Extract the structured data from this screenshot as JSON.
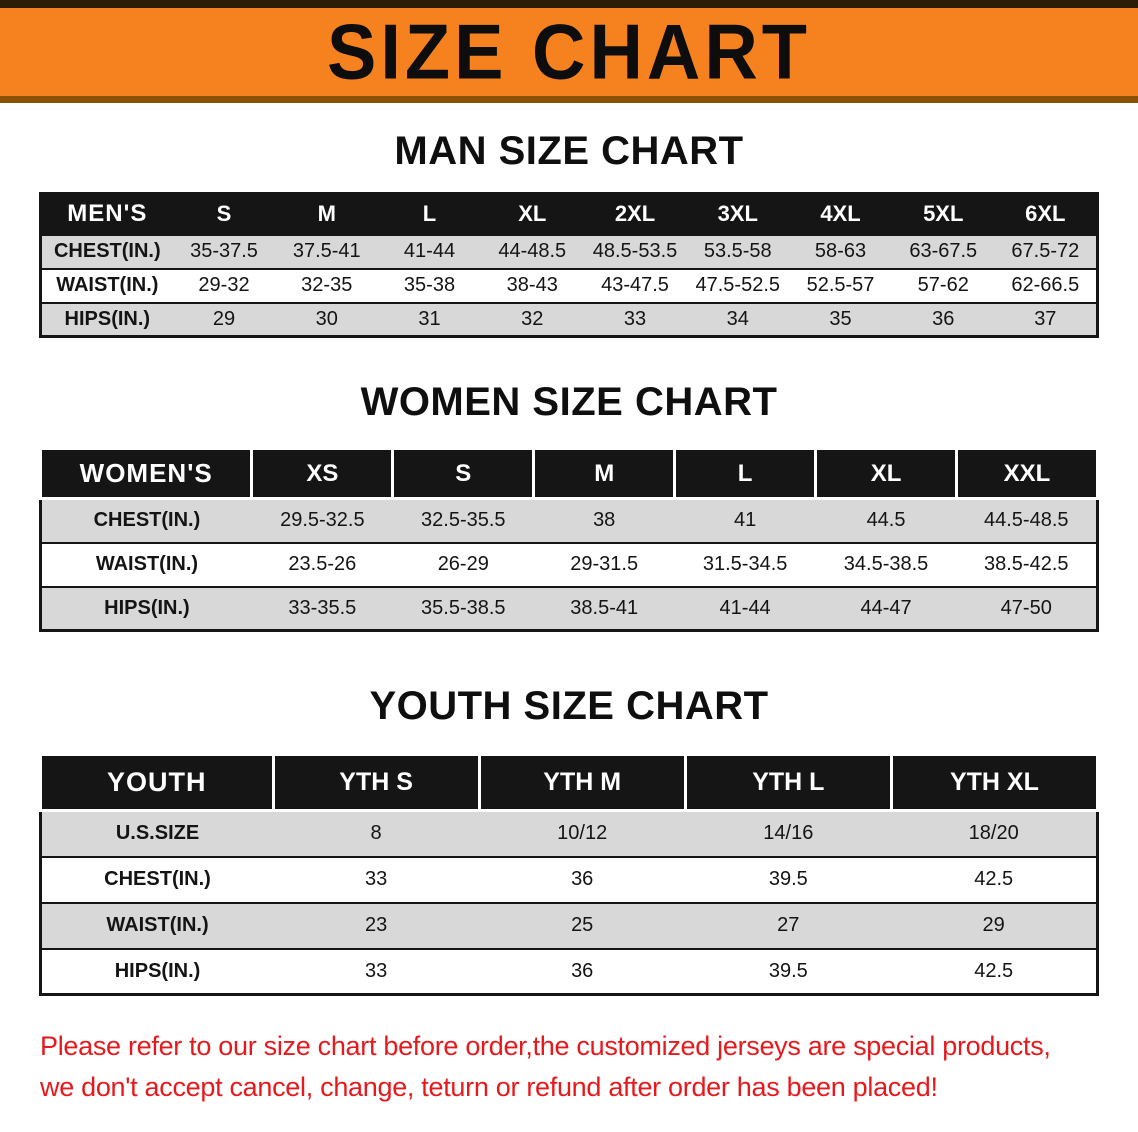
{
  "banner": {
    "title": "SIZE CHART"
  },
  "colors": {
    "banner_orange": "#F5821F",
    "banner_edge_dark": "#2B1D07",
    "header_black": "#151515",
    "row_gray": "#D8D8D8",
    "note_red": "#E8191D"
  },
  "chart_data": [
    {
      "type": "table",
      "title": "MAN SIZE CHART",
      "columns": [
        "MEN'S",
        "S",
        "M",
        "L",
        "XL",
        "2XL",
        "3XL",
        "4XL",
        "5XL",
        "6XL"
      ],
      "rows": [
        [
          "CHEST(IN.)",
          "35-37.5",
          "37.5-41",
          "41-44",
          "44-48.5",
          "48.5-53.5",
          "53.5-58",
          "58-63",
          "63-67.5",
          "67.5-72"
        ],
        [
          "WAIST(IN.)",
          "29-32",
          "32-35",
          "35-38",
          "38-43",
          "43-47.5",
          "47.5-52.5",
          "52.5-57",
          "57-62",
          "62-66.5"
        ],
        [
          "HIPS(IN.)",
          "29",
          "30",
          "31",
          "32",
          "33",
          "34",
          "35",
          "36",
          "37"
        ]
      ]
    },
    {
      "type": "table",
      "title": "WOMEN SIZE CHART",
      "columns": [
        "WOMEN'S",
        "XS",
        "S",
        "M",
        "L",
        "XL",
        "XXL"
      ],
      "rows": [
        [
          "CHEST(IN.)",
          "29.5-32.5",
          "32.5-35.5",
          "38",
          "41",
          "44.5",
          "44.5-48.5"
        ],
        [
          "WAIST(IN.)",
          "23.5-26",
          "26-29",
          "29-31.5",
          "31.5-34.5",
          "34.5-38.5",
          "38.5-42.5"
        ],
        [
          "HIPS(IN.)",
          "33-35.5",
          "35.5-38.5",
          "38.5-41",
          "41-44",
          "44-47",
          "47-50"
        ]
      ]
    },
    {
      "type": "table",
      "title": "YOUTH SIZE CHART",
      "columns": [
        "YOUTH",
        "YTH S",
        "YTH M",
        "YTH L",
        "YTH XL"
      ],
      "rows": [
        [
          "U.S.SIZE",
          "8",
          "10/12",
          "14/16",
          "18/20"
        ],
        [
          "CHEST(IN.)",
          "33",
          "36",
          "39.5",
          "42.5"
        ],
        [
          "WAIST(IN.)",
          "23",
          "25",
          "27",
          "29"
        ],
        [
          "HIPS(IN.)",
          "33",
          "36",
          "39.5",
          "42.5"
        ]
      ]
    }
  ],
  "footer": {
    "lines": [
      "Please refer to our size chart before order,the customized jerseys are special products,",
      "we don't accept cancel, change, teturn or refund after order has been placed!"
    ]
  }
}
